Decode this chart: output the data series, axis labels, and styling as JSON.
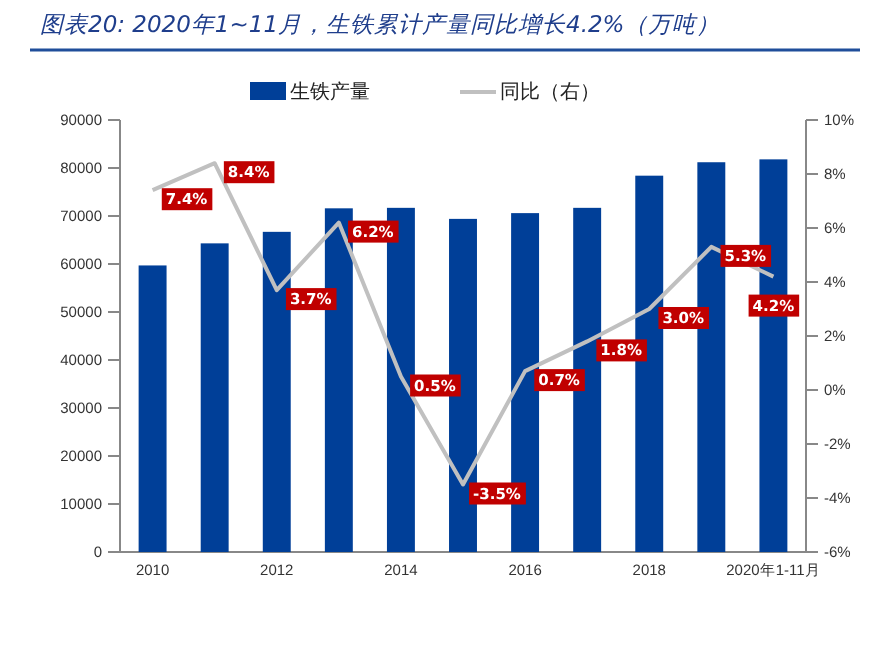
{
  "chart_data": {
    "type": "bar",
    "title": "图表20:  2020年1~11月，生铁累计产量同比增长4.2%（万吨）",
    "categories": [
      "2010",
      null,
      "2012",
      null,
      "2014",
      null,
      "2016",
      null,
      "2018",
      null,
      "2020年1-11月"
    ],
    "series": [
      {
        "name": "生铁产量",
        "color": "#003f98",
        "values": [
          59700,
          64300,
          66700,
          71600,
          71700,
          69400,
          70600,
          71700,
          78400,
          81200,
          81800
        ]
      },
      {
        "name": "同比（右）",
        "type": "line",
        "axis": "y2",
        "color": "#c0c0c0",
        "values": [
          7.4,
          8.4,
          3.7,
          6.2,
          0.5,
          -3.5,
          0.7,
          1.8,
          3.0,
          5.3,
          4.2
        ],
        "value_labels": [
          "7.4%",
          "8.4%",
          "3.7%",
          "6.2%",
          "0.5%",
          "-3.5%",
          "0.7%",
          "1.8%",
          "3.0%",
          "5.3%",
          "4.2%"
        ]
      }
    ],
    "ylim": [
      0,
      90000
    ],
    "yticks": [
      0,
      10000,
      20000,
      30000,
      40000,
      50000,
      60000,
      70000,
      80000,
      90000
    ],
    "y2lim": [
      -6,
      10
    ],
    "y2ticks": [
      {
        "value": -6,
        "label": "-6%"
      },
      {
        "value": -4,
        "label": "-4%"
      },
      {
        "value": -2,
        "label": "-2%"
      },
      {
        "value": 0,
        "label": "0%"
      },
      {
        "value": 2,
        "label": "2%"
      },
      {
        "value": 4,
        "label": "4%"
      },
      {
        "value": 6,
        "label": "6%"
      },
      {
        "value": 8,
        "label": "8%"
      },
      {
        "value": 10,
        "label": "10%"
      }
    ],
    "legend": "top"
  }
}
